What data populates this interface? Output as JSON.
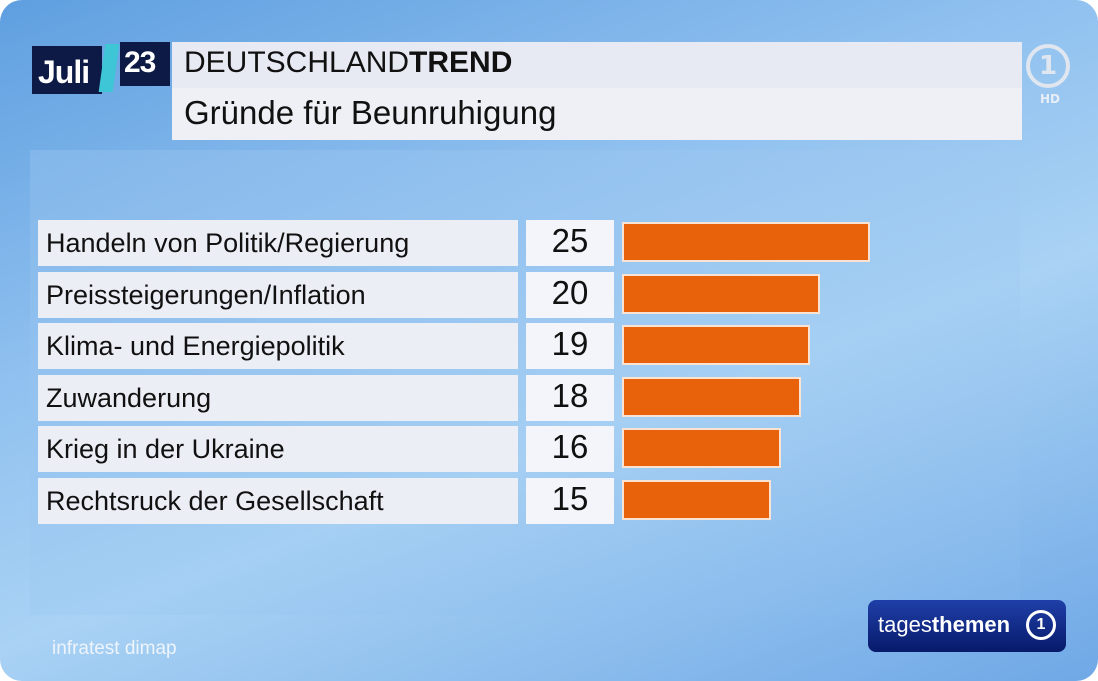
{
  "header": {
    "month": "Juli",
    "year": "23",
    "brand_regular": "DEUTSCHLAND",
    "brand_bold": "TREND",
    "subtitle": "Gründe für Beunruhigung",
    "channel_logo": "1",
    "hd": "HD"
  },
  "footer": {
    "source": "infratest dimap",
    "show_regular": "tages",
    "show_bold": "themen",
    "show_logo": "1"
  },
  "colors": {
    "bar": "#e8620c",
    "title_bg": "#0c1a45"
  },
  "chart_data": {
    "type": "bar",
    "orientation": "horizontal",
    "title": "Gründe für Beunruhigung",
    "categories": [
      "Handeln von Politik/Regierung",
      "Preissteigerungen/Inflation",
      "Klima- und Energiepolitik",
      "Zuwanderung",
      "Krieg in der Ukraine",
      "Rechtsruck der Gesellschaft"
    ],
    "values": [
      25,
      20,
      19,
      18,
      16,
      15
    ],
    "xlim": [
      0,
      25
    ],
    "grid": false
  }
}
